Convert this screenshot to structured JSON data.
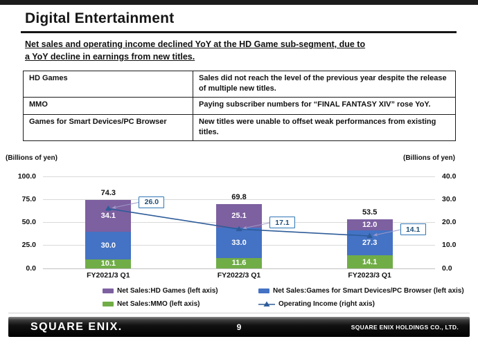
{
  "slide": {
    "title": "Digital Entertainment",
    "subtitle_lines": [
      "Net sales and operating income declined YoY at the HD Game sub-segment, due to",
      "a YoY decline in earnings from new titles."
    ]
  },
  "summary_table": {
    "rows": [
      {
        "segment": "HD Games",
        "comment": "Sales did not reach the level of the previous year despite the release of multiple new titles."
      },
      {
        "segment": "MMO",
        "comment": "Paying subscriber numbers for “FINAL FANTASY XIV” rose YoY."
      },
      {
        "segment": "Games for Smart Devices/PC Browser",
        "comment": "New titles were unable to offset weak performances from existing titles."
      }
    ]
  },
  "chart_data": {
    "type": "bar",
    "subtype": "stacked-bars-with-line",
    "categories": [
      "FY2021/3 Q1",
      "FY2022/3 Q1",
      "FY2023/3 Q1"
    ],
    "series": [
      {
        "name": "Net Sales:MMO (left axis)",
        "type": "bar",
        "stack_order": 0,
        "color": "#70AD47",
        "values": [
          10.1,
          11.6,
          14.1
        ]
      },
      {
        "name": "Net Sales:Games for Smart Devices/PC Browser (left axis)",
        "type": "bar",
        "stack_order": 1,
        "color": "#4472C4",
        "values": [
          30.0,
          33.0,
          27.3
        ]
      },
      {
        "name": "Net Sales:HD Games (left axis)",
        "type": "bar",
        "stack_order": 2,
        "color": "#7D60A0",
        "values": [
          34.1,
          25.1,
          12.0
        ]
      },
      {
        "name": "Operating Income (right axis)",
        "type": "line",
        "color": "#2E5C99",
        "values": [
          26.0,
          17.1,
          14.1
        ]
      }
    ],
    "bar_totals": [
      74.3,
      69.8,
      53.5
    ],
    "left_axis": {
      "title": "(Billions of yen)",
      "ticks": [
        0,
        25,
        50,
        75,
        100
      ],
      "lim": [
        0,
        100
      ]
    },
    "right_axis": {
      "title": "(Billions of yen)",
      "ticks": [
        0,
        10,
        20,
        30,
        40
      ],
      "lim": [
        0,
        40
      ]
    },
    "grid": true,
    "legend_position": "bottom",
    "callout": {
      "border_color": "#2E75B6",
      "text_color": "#1F4E79",
      "leader_color": "#9E9AC9"
    }
  },
  "legend": {
    "items": [
      {
        "label": "Net Sales:HD Games (left axis)",
        "color": "#7D60A0",
        "marker": "rect"
      },
      {
        "label": "Net Sales:MMO (left axis)",
        "color": "#70AD47",
        "marker": "rect"
      },
      {
        "label": "Net Sales:Games for Smart Devices/PC Browser (left axis)",
        "color": "#4472C4",
        "marker": "rect"
      },
      {
        "label": "Operating Income (right axis)",
        "color": "#2E5C99",
        "marker": "line-triangle"
      }
    ]
  },
  "footer": {
    "logo_text": "SQUARE ENIX.",
    "page_number": "9",
    "company": "SQUARE ENIX HOLDINGS CO., LTD."
  }
}
